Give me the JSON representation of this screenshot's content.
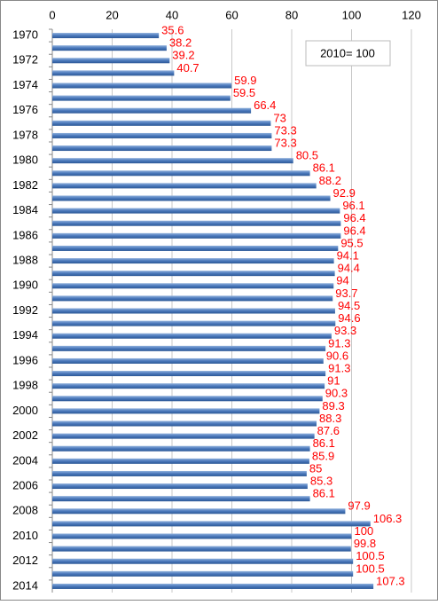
{
  "chart_data": {
    "type": "barh",
    "annotation": "2010= 100",
    "categories": [
      "1970",
      null,
      "1972",
      null,
      "1974",
      null,
      "1976",
      null,
      "1978",
      null,
      "1980",
      null,
      "1982",
      null,
      "1984",
      null,
      "1986",
      null,
      "1988",
      null,
      "1990",
      null,
      "1992",
      null,
      "1994",
      null,
      "1996",
      null,
      "1998",
      null,
      "2000",
      null,
      "2002",
      null,
      "2004",
      null,
      "2006",
      null,
      "2008",
      null,
      "2010",
      null,
      "2012",
      null,
      "2014"
    ],
    "values": [
      35.6,
      38.2,
      39.2,
      40.7,
      59.9,
      59.5,
      66.4,
      73,
      73.3,
      73.3,
      80.5,
      86.1,
      88.2,
      92.9,
      96.1,
      96.4,
      96.4,
      95.5,
      94.1,
      94.4,
      94,
      93.7,
      94.5,
      94.6,
      93.3,
      91.3,
      90.6,
      91.3,
      91,
      90.3,
      89.3,
      88.3,
      87.6,
      86.1,
      85.9,
      85,
      85.3,
      86.1,
      97.9,
      106.3,
      100,
      99.8,
      100.5,
      100.5,
      107.3
    ],
    "color": "#3b6aae",
    "label_color": "#ff0000",
    "xlim": [
      0,
      120
    ],
    "xticks": [
      0,
      20,
      40,
      60,
      80,
      100,
      120
    ],
    "grid": true
  }
}
